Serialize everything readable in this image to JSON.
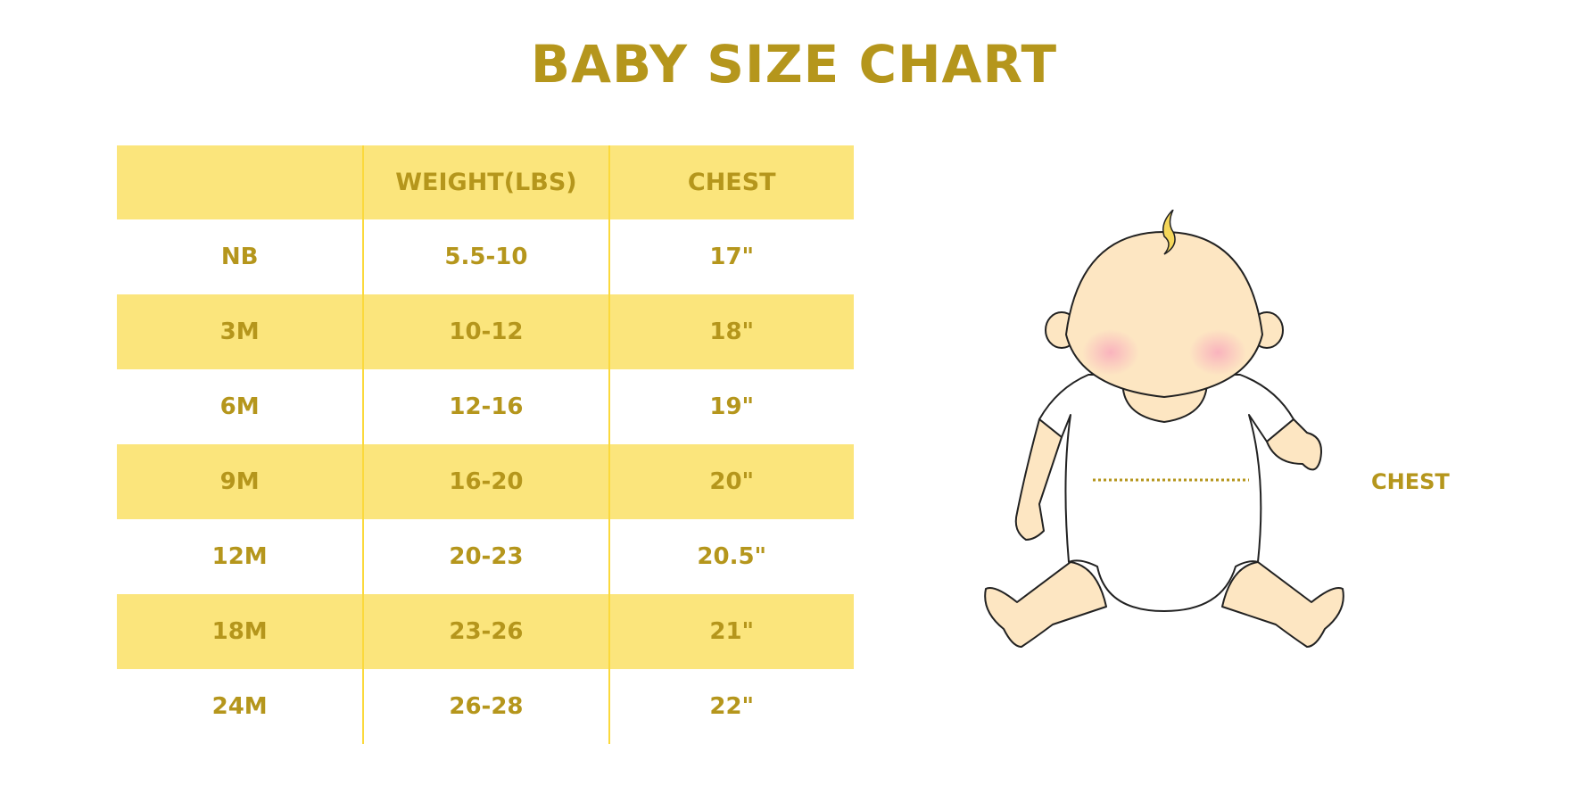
{
  "title": "BABY SIZE CHART",
  "table": {
    "headers": [
      "",
      "WEIGHT(LBS)",
      "CHEST"
    ],
    "rows": [
      [
        "NB",
        "5.5-10",
        "17\""
      ],
      [
        "3M",
        "10-12",
        "18\""
      ],
      [
        "6M",
        "12-16",
        "19\""
      ],
      [
        "9M",
        "16-20",
        "20\""
      ],
      [
        "12M",
        "20-23",
        "20.5\""
      ],
      [
        "18M",
        "23-26",
        "21\""
      ],
      [
        "24M",
        "26-28",
        "22\""
      ]
    ]
  },
  "illustration": {
    "chest_label": "CHEST"
  },
  "colors": {
    "text": "#b5961c",
    "band": "#fbe57c",
    "skin": "#fde6c2",
    "blush": "#f9b3bd"
  }
}
